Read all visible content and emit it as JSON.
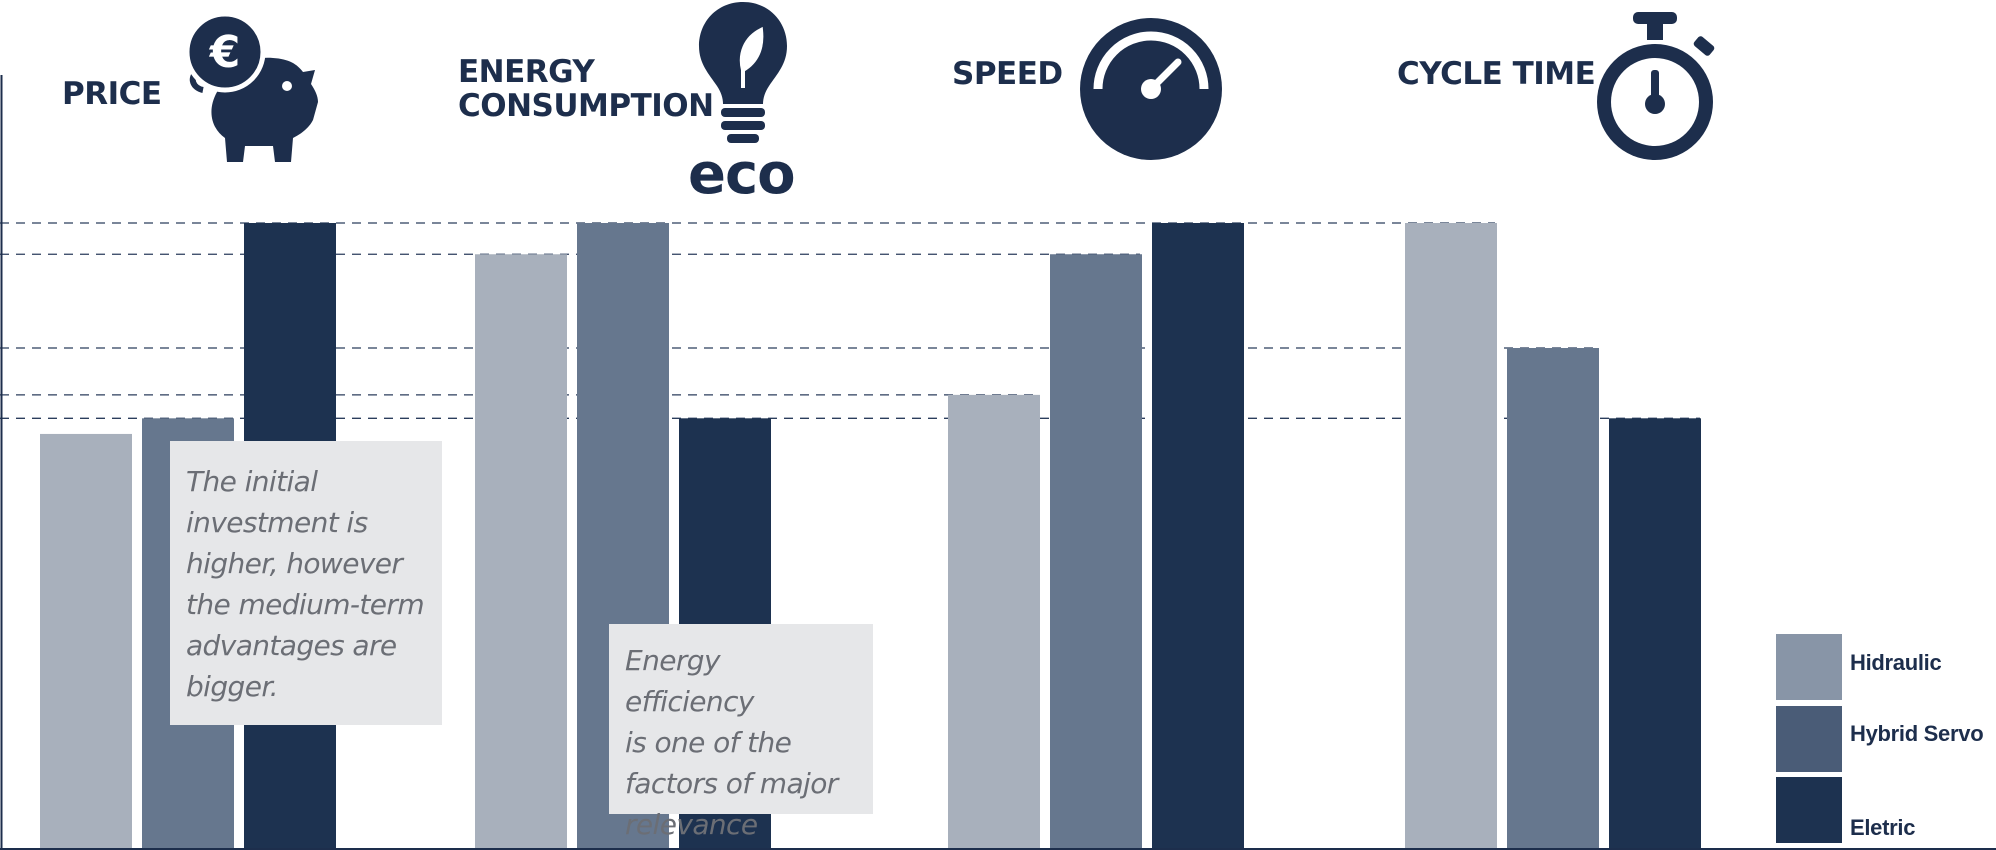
{
  "chart_data": {
    "type": "bar",
    "categories": [
      "PRICE",
      "ENERGY CONSUMPTION",
      "SPEED",
      "CYCLE TIME"
    ],
    "series": [
      {
        "name": "Hidraulic",
        "values": [
          53,
          76,
          58,
          80
        ]
      },
      {
        "name": "Hybrid Servo",
        "values": [
          55,
          80,
          76,
          64
        ]
      },
      {
        "name": "Eletric",
        "values": [
          80,
          55,
          80,
          55
        ]
      }
    ],
    "ylim": [
      0,
      100
    ],
    "grid": "dashed reference lines at bar tops",
    "legend_position": "bottom-right",
    "colors": {
      "Hidraulic": "#a8b0bc",
      "Hybrid Servo": "#66778e",
      "Eletric": "#1d3250",
      "text": "#1d2e4c",
      "note_bg": "#e6e7e9"
    },
    "legend_swatch_colors": [
      "#8895a7",
      "#4a5c77",
      "#1d3250"
    ]
  },
  "labels": {
    "price": "PRICE",
    "energy_line1": "ENERGY",
    "energy_line2": "CONSUMPTION",
    "eco": "eco",
    "speed": "SPEED",
    "cycle_time": "CYCLE TIME"
  },
  "notes": {
    "price_lines": [
      "The initial",
      "investment is",
      "higher, however",
      "the medium-term",
      "advantages are",
      "bigger."
    ],
    "energy_lines": [
      "Energy efficiency",
      "is one of the",
      "factors of major",
      "relevance"
    ]
  },
  "legend": [
    "Hidraulic",
    "Hybrid Servo",
    "Eletric"
  ],
  "icons": [
    "piggy-bank-euro-icon",
    "lightbulb-leaf-icon",
    "speedometer-icon",
    "stopwatch-icon"
  ]
}
